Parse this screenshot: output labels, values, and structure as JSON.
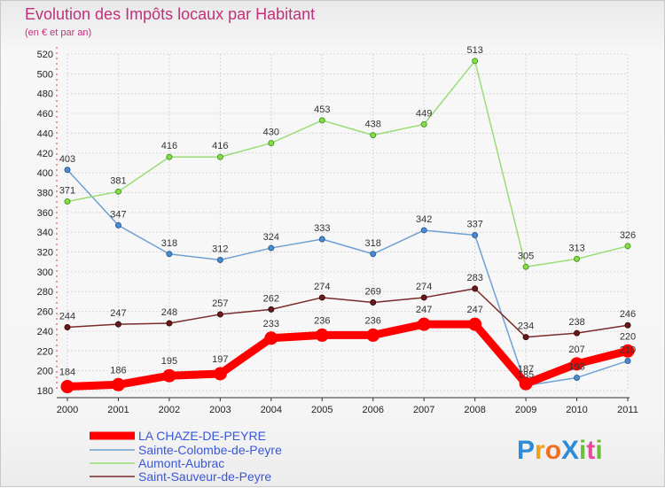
{
  "chart_data": {
    "type": "line",
    "title": "Evolution des Impôts locaux par Habitant",
    "subtitle": "(en € et par an)",
    "xlabel": "",
    "ylabel": "",
    "x": [
      "2000",
      "2001",
      "2002",
      "2003",
      "2004",
      "2005",
      "2006",
      "2007",
      "2008",
      "2009",
      "2010",
      "2011"
    ],
    "ylim": [
      180,
      520
    ],
    "yticks": [
      180,
      200,
      220,
      240,
      260,
      280,
      300,
      320,
      340,
      360,
      380,
      400,
      420,
      440,
      460,
      480,
      500,
      520
    ],
    "grid": true,
    "legend_position": "bottom-left",
    "series": [
      {
        "name": "LA CHAZE-DE-PEYRE",
        "color": "#ff0000",
        "values": [
          184,
          186,
          195,
          197,
          233,
          236,
          236,
          247,
          247,
          187,
          207,
          220
        ],
        "labels": [
          "184",
          "186",
          "195",
          "197",
          "233",
          "236",
          "236",
          "247",
          "247",
          "187",
          "207",
          "220"
        ]
      },
      {
        "name": "Sainte-Colombe-de-Peyre",
        "color": "#6fa0d2",
        "values": [
          403,
          347,
          318,
          312,
          324,
          333,
          318,
          342,
          337,
          185,
          193,
          210
        ],
        "labels": [
          "403",
          "347",
          "318",
          "312",
          "324",
          "333",
          "318",
          "342",
          "337",
          "185",
          "193",
          "210"
        ]
      },
      {
        "name": "Aumont-Aubrac",
        "color": "#99dd77",
        "values": [
          371,
          381,
          416,
          416,
          430,
          453,
          438,
          449,
          513,
          305,
          313,
          326
        ],
        "labels": [
          "371",
          "381",
          "416",
          "416",
          "430",
          "453",
          "438",
          "449",
          "513",
          "305",
          "313",
          "326"
        ]
      },
      {
        "name": "Saint-Sauveur-de-Peyre",
        "color": "#7a2a2a",
        "values": [
          244,
          247,
          248,
          257,
          262,
          274,
          269,
          274,
          283,
          234,
          238,
          246
        ],
        "labels": [
          "244",
          "247",
          "248",
          "257",
          "262",
          "274",
          "269",
          "274",
          "283",
          "234",
          "238",
          "246"
        ]
      }
    ]
  },
  "logo": {
    "text": "ProXiti"
  }
}
